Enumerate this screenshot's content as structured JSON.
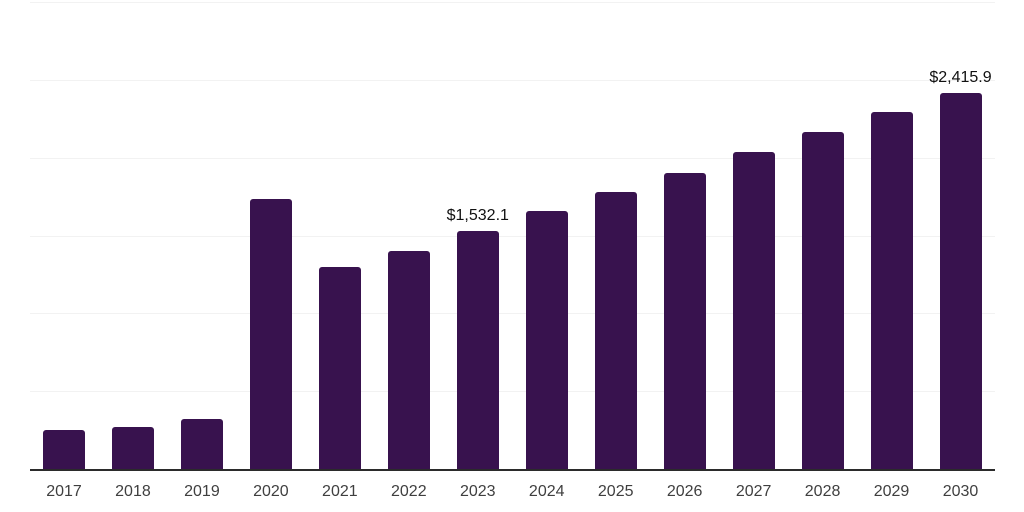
{
  "chart_data": {
    "type": "bar",
    "title": "",
    "xlabel": "",
    "ylabel": "",
    "categories": [
      "2017",
      "2018",
      "2019",
      "2020",
      "2021",
      "2022",
      "2023",
      "2024",
      "2025",
      "2026",
      "2027",
      "2028",
      "2029",
      "2030"
    ],
    "values": [
      250,
      270,
      320,
      1735,
      1300,
      1400,
      1532.1,
      1655,
      1780,
      1900,
      2035,
      2165,
      2295,
      2415.9
    ],
    "labeled_points": [
      {
        "category": "2023",
        "label": "$1,532.1"
      },
      {
        "category": "2030",
        "label": "$2,415.9"
      }
    ],
    "ylim": [
      0,
      3000
    ],
    "gridline_interval": 500,
    "grid": true,
    "y_tick_labels_visible": false,
    "legend_position": "none",
    "colors": {
      "bar": "#38124e",
      "axis_line": "#2b2b2b",
      "gridline": "#f2f2f2",
      "x_tick_label": "#3f3f3f",
      "value_label": "#111111",
      "background": "#ffffff"
    }
  }
}
